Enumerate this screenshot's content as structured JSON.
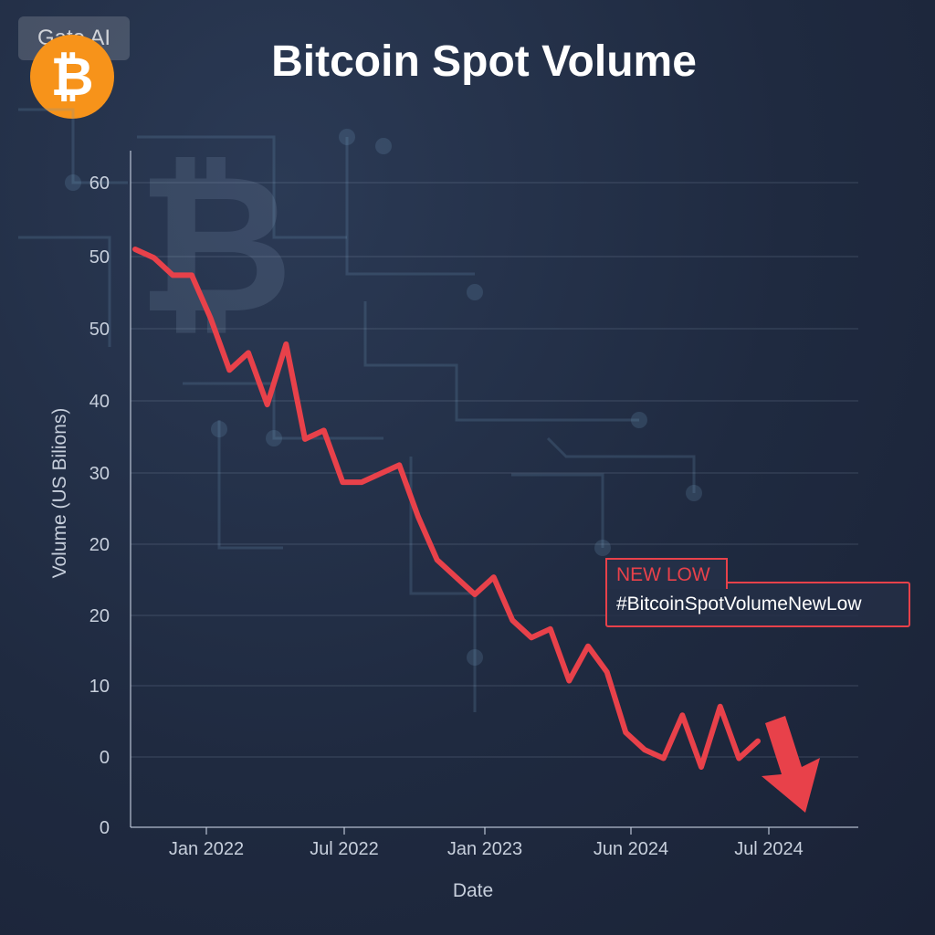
{
  "watermark": "Gate AI",
  "logo_symbol": "₿",
  "title": "Bitcoin Spot Volume",
  "callout": {
    "tag": "NEW LOW",
    "text": "#BitcoinSpotVolumeNewLow",
    "color": "#e8414a"
  },
  "chart_data": {
    "type": "line",
    "title": "Bitcoin Spot Volume",
    "xlabel": "Date",
    "ylabel": "Volume (US Bilions)",
    "y_tick_labels": [
      "60",
      "50",
      "50",
      "40",
      "30",
      "20",
      "20",
      "10",
      "0",
      "0"
    ],
    "x_tick_labels": [
      "Jan 2022",
      "Jul 2022",
      "Jan 2023",
      "Jun 2024",
      "Jul 2024"
    ],
    "grid": true,
    "line_color": "#e8414a",
    "series": [
      {
        "values": [
          51,
          50,
          48,
          48,
          43,
          37,
          39,
          33,
          40,
          29,
          30,
          24,
          24,
          25,
          26,
          20,
          15,
          13,
          11,
          13,
          8,
          6,
          7,
          1,
          5,
          2,
          -5,
          -7,
          -8,
          -3,
          -9,
          -2,
          -8,
          -6
        ]
      }
    ]
  }
}
